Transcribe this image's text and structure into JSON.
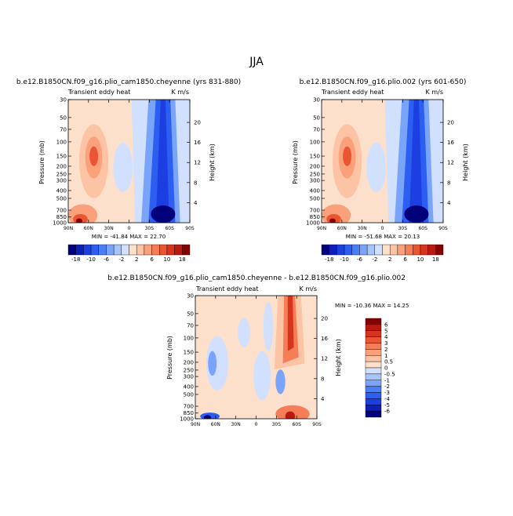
{
  "main_title": "JJA",
  "chart_data": [
    {
      "type": "heatmap",
      "title": "b.e12.B1850CN.f09_g16.plio_cam1850.cheyenne (yrs 831-880)",
      "left_label": "Transient eddy heat",
      "right_label": "K m/s",
      "ylabel": "Pressure (mb)",
      "right_ylabel": "Height (km)",
      "xticks": [
        "90N",
        "60N",
        "30N",
        "0",
        "30S",
        "60S",
        "90S"
      ],
      "yticks": [
        "30",
        "50",
        "70",
        "100",
        "150",
        "200",
        "250",
        "300",
        "400",
        "500",
        "700",
        "850",
        "1000"
      ],
      "height_ticks": [
        "4",
        "8",
        "12",
        "16",
        "20"
      ],
      "stats": "MIN = -41.84   MAX =  22.70",
      "colorbar_labels": [
        "-18",
        "-10",
        "-6",
        "-2",
        "2",
        "6",
        "10",
        "18"
      ],
      "colors": [
        "#00007a",
        "#0c1fb8",
        "#1d3ee0",
        "#2c5ef2",
        "#4a7ef7",
        "#7aa4fa",
        "#a8c4fc",
        "#d0e0fe",
        "#fde0cc",
        "#fcc4a4",
        "#faa17c",
        "#f57d58",
        "#ea5532",
        "#d8331d",
        "#b81a10",
        "#850202"
      ]
    },
    {
      "type": "heatmap",
      "title": "b.e12.B1850CN.f09_g16.plio.002 (yrs 601-650)",
      "left_label": "Transient eddy heat",
      "right_label": "K m/s",
      "ylabel": "Pressure (mb)",
      "right_ylabel": "Height (km)",
      "xticks": [
        "90N",
        "60N",
        "30N",
        "0",
        "30S",
        "60S",
        "90S"
      ],
      "yticks": [
        "30",
        "50",
        "70",
        "100",
        "150",
        "200",
        "250",
        "300",
        "400",
        "500",
        "700",
        "850",
        "1000"
      ],
      "height_ticks": [
        "4",
        "8",
        "12",
        "16",
        "20"
      ],
      "stats": "MIN = -51.68   MAX =  20.13",
      "colorbar_labels": [
        "-18",
        "-10",
        "-6",
        "-2",
        "2",
        "6",
        "10",
        "18"
      ],
      "colors": [
        "#00007a",
        "#0c1fb8",
        "#1d3ee0",
        "#2c5ef2",
        "#4a7ef7",
        "#7aa4fa",
        "#a8c4fc",
        "#d0e0fe",
        "#fde0cc",
        "#fcc4a4",
        "#faa17c",
        "#f57d58",
        "#ea5532",
        "#d8331d",
        "#b81a10",
        "#850202"
      ]
    },
    {
      "type": "heatmap",
      "title": "b.e12.B1850CN.f09_g16.plio_cam1850.cheyenne - b.e12.B1850CN.f09_g16.plio.002",
      "left_label": "Transient eddy heat",
      "right_label": "K m/s",
      "ylabel": "Pressure (mb)",
      "right_ylabel": "Height (km)",
      "xticks": [
        "90N",
        "60N",
        "30N",
        "0",
        "30S",
        "60S",
        "90S"
      ],
      "yticks": [
        "30",
        "50",
        "70",
        "100",
        "150",
        "200",
        "250",
        "300",
        "400",
        "500",
        "700",
        "850",
        "1000"
      ],
      "height_ticks": [
        "4",
        "8",
        "12",
        "16",
        "20"
      ],
      "stats": "MIN = -10.36   MAX =  14.25",
      "colorbar_labels": [
        "6",
        "5",
        "4",
        "3",
        "2",
        "1",
        "0.5",
        "0",
        "-0.5",
        "-1",
        "-2",
        "-3",
        "-4",
        "-5",
        "-6"
      ],
      "colors": [
        "#850202",
        "#b81a10",
        "#d8331d",
        "#ea5532",
        "#f57d58",
        "#faa17c",
        "#fcc4a4",
        "#fde0cc",
        "#d0e0fe",
        "#a8c4fc",
        "#7aa4fa",
        "#4a7ef7",
        "#2c5ef2",
        "#1d3ee0",
        "#0c1fb8",
        "#00007a"
      ]
    }
  ]
}
